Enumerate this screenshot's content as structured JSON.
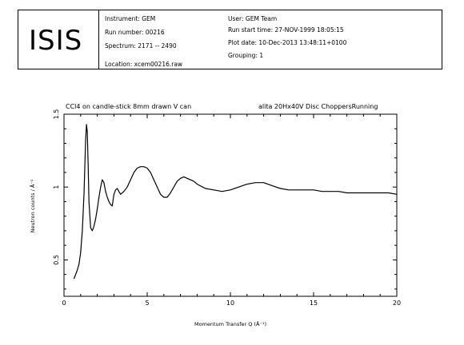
{
  "header": {
    "logo": "ISIS",
    "left_fields": [
      {
        "label": "Instrument",
        "value": "GEM"
      },
      {
        "label": "Run number",
        "value": "00216"
      },
      {
        "label": "Spectrum",
        "value": "2171 -- 2490"
      }
    ],
    "location": {
      "label": "Location",
      "value": "xcem00216.raw"
    },
    "right_fields": [
      {
        "label": "User",
        "value": "GEM Team"
      },
      {
        "label": "Run start time",
        "value": "27-NOV-1999 18:05:15"
      },
      {
        "label": "Plot date",
        "value": "10-Dec-2013 13:48:11+0100"
      },
      {
        "label": "Grouping",
        "value": "1"
      }
    ]
  },
  "chart_data": {
    "type": "line",
    "title_left": "CCl4 on candle-stick 8mm drawn V can",
    "title_right": "alita 20Hx40V Disc ChoppersRunning",
    "xlabel": "Momentum Transfer Q (Å⁻¹)",
    "ylabel": "Neutron counts / Å⁻¹",
    "xlim": [
      0,
      20
    ],
    "ylim": [
      0.25,
      1.5
    ],
    "xticks": [
      0,
      5,
      10,
      15,
      20
    ],
    "yticks": [
      0.5,
      1,
      1.5
    ],
    "grid": false,
    "line_color": "#000000",
    "series": [
      {
        "x": [
          0.6,
          0.7,
          0.8,
          0.9,
          1.0,
          1.1,
          1.2,
          1.3,
          1.35,
          1.4,
          1.45,
          1.5,
          1.6,
          1.7,
          1.8,
          1.9,
          2.0,
          2.1,
          2.2,
          2.3,
          2.4,
          2.5,
          2.6,
          2.7,
          2.8,
          2.9,
          3.0,
          3.1,
          3.2,
          3.3,
          3.4,
          3.6,
          3.8,
          4.0,
          4.2,
          4.4,
          4.6,
          4.8,
          5.0,
          5.2,
          5.4,
          5.6,
          5.8,
          6.0,
          6.2,
          6.4,
          6.6,
          6.8,
          7.0,
          7.2,
          7.4,
          7.6,
          7.8,
          8.0,
          8.5,
          9.0,
          9.5,
          10.0,
          10.5,
          11.0,
          11.5,
          12.0,
          12.5,
          13.0,
          13.5,
          14.0,
          14.5,
          15.0,
          15.5,
          16.0,
          16.5,
          17.0,
          17.5,
          18.0,
          18.5,
          19.0,
          19.5,
          20.0
        ],
        "y": [
          0.37,
          0.4,
          0.43,
          0.47,
          0.55,
          0.7,
          0.95,
          1.32,
          1.43,
          1.38,
          1.15,
          0.9,
          0.72,
          0.7,
          0.73,
          0.78,
          0.85,
          0.93,
          1.0,
          1.05,
          1.03,
          0.97,
          0.93,
          0.9,
          0.88,
          0.87,
          0.95,
          0.98,
          0.99,
          0.97,
          0.95,
          0.97,
          1.0,
          1.05,
          1.1,
          1.13,
          1.14,
          1.14,
          1.13,
          1.1,
          1.05,
          1.0,
          0.95,
          0.93,
          0.93,
          0.96,
          1.0,
          1.04,
          1.06,
          1.07,
          1.06,
          1.05,
          1.04,
          1.02,
          0.99,
          0.98,
          0.97,
          0.98,
          1.0,
          1.02,
          1.03,
          1.03,
          1.01,
          0.99,
          0.98,
          0.98,
          0.98,
          0.98,
          0.97,
          0.97,
          0.97,
          0.96,
          0.96,
          0.96,
          0.96,
          0.96,
          0.96,
          0.95
        ]
      }
    ]
  }
}
